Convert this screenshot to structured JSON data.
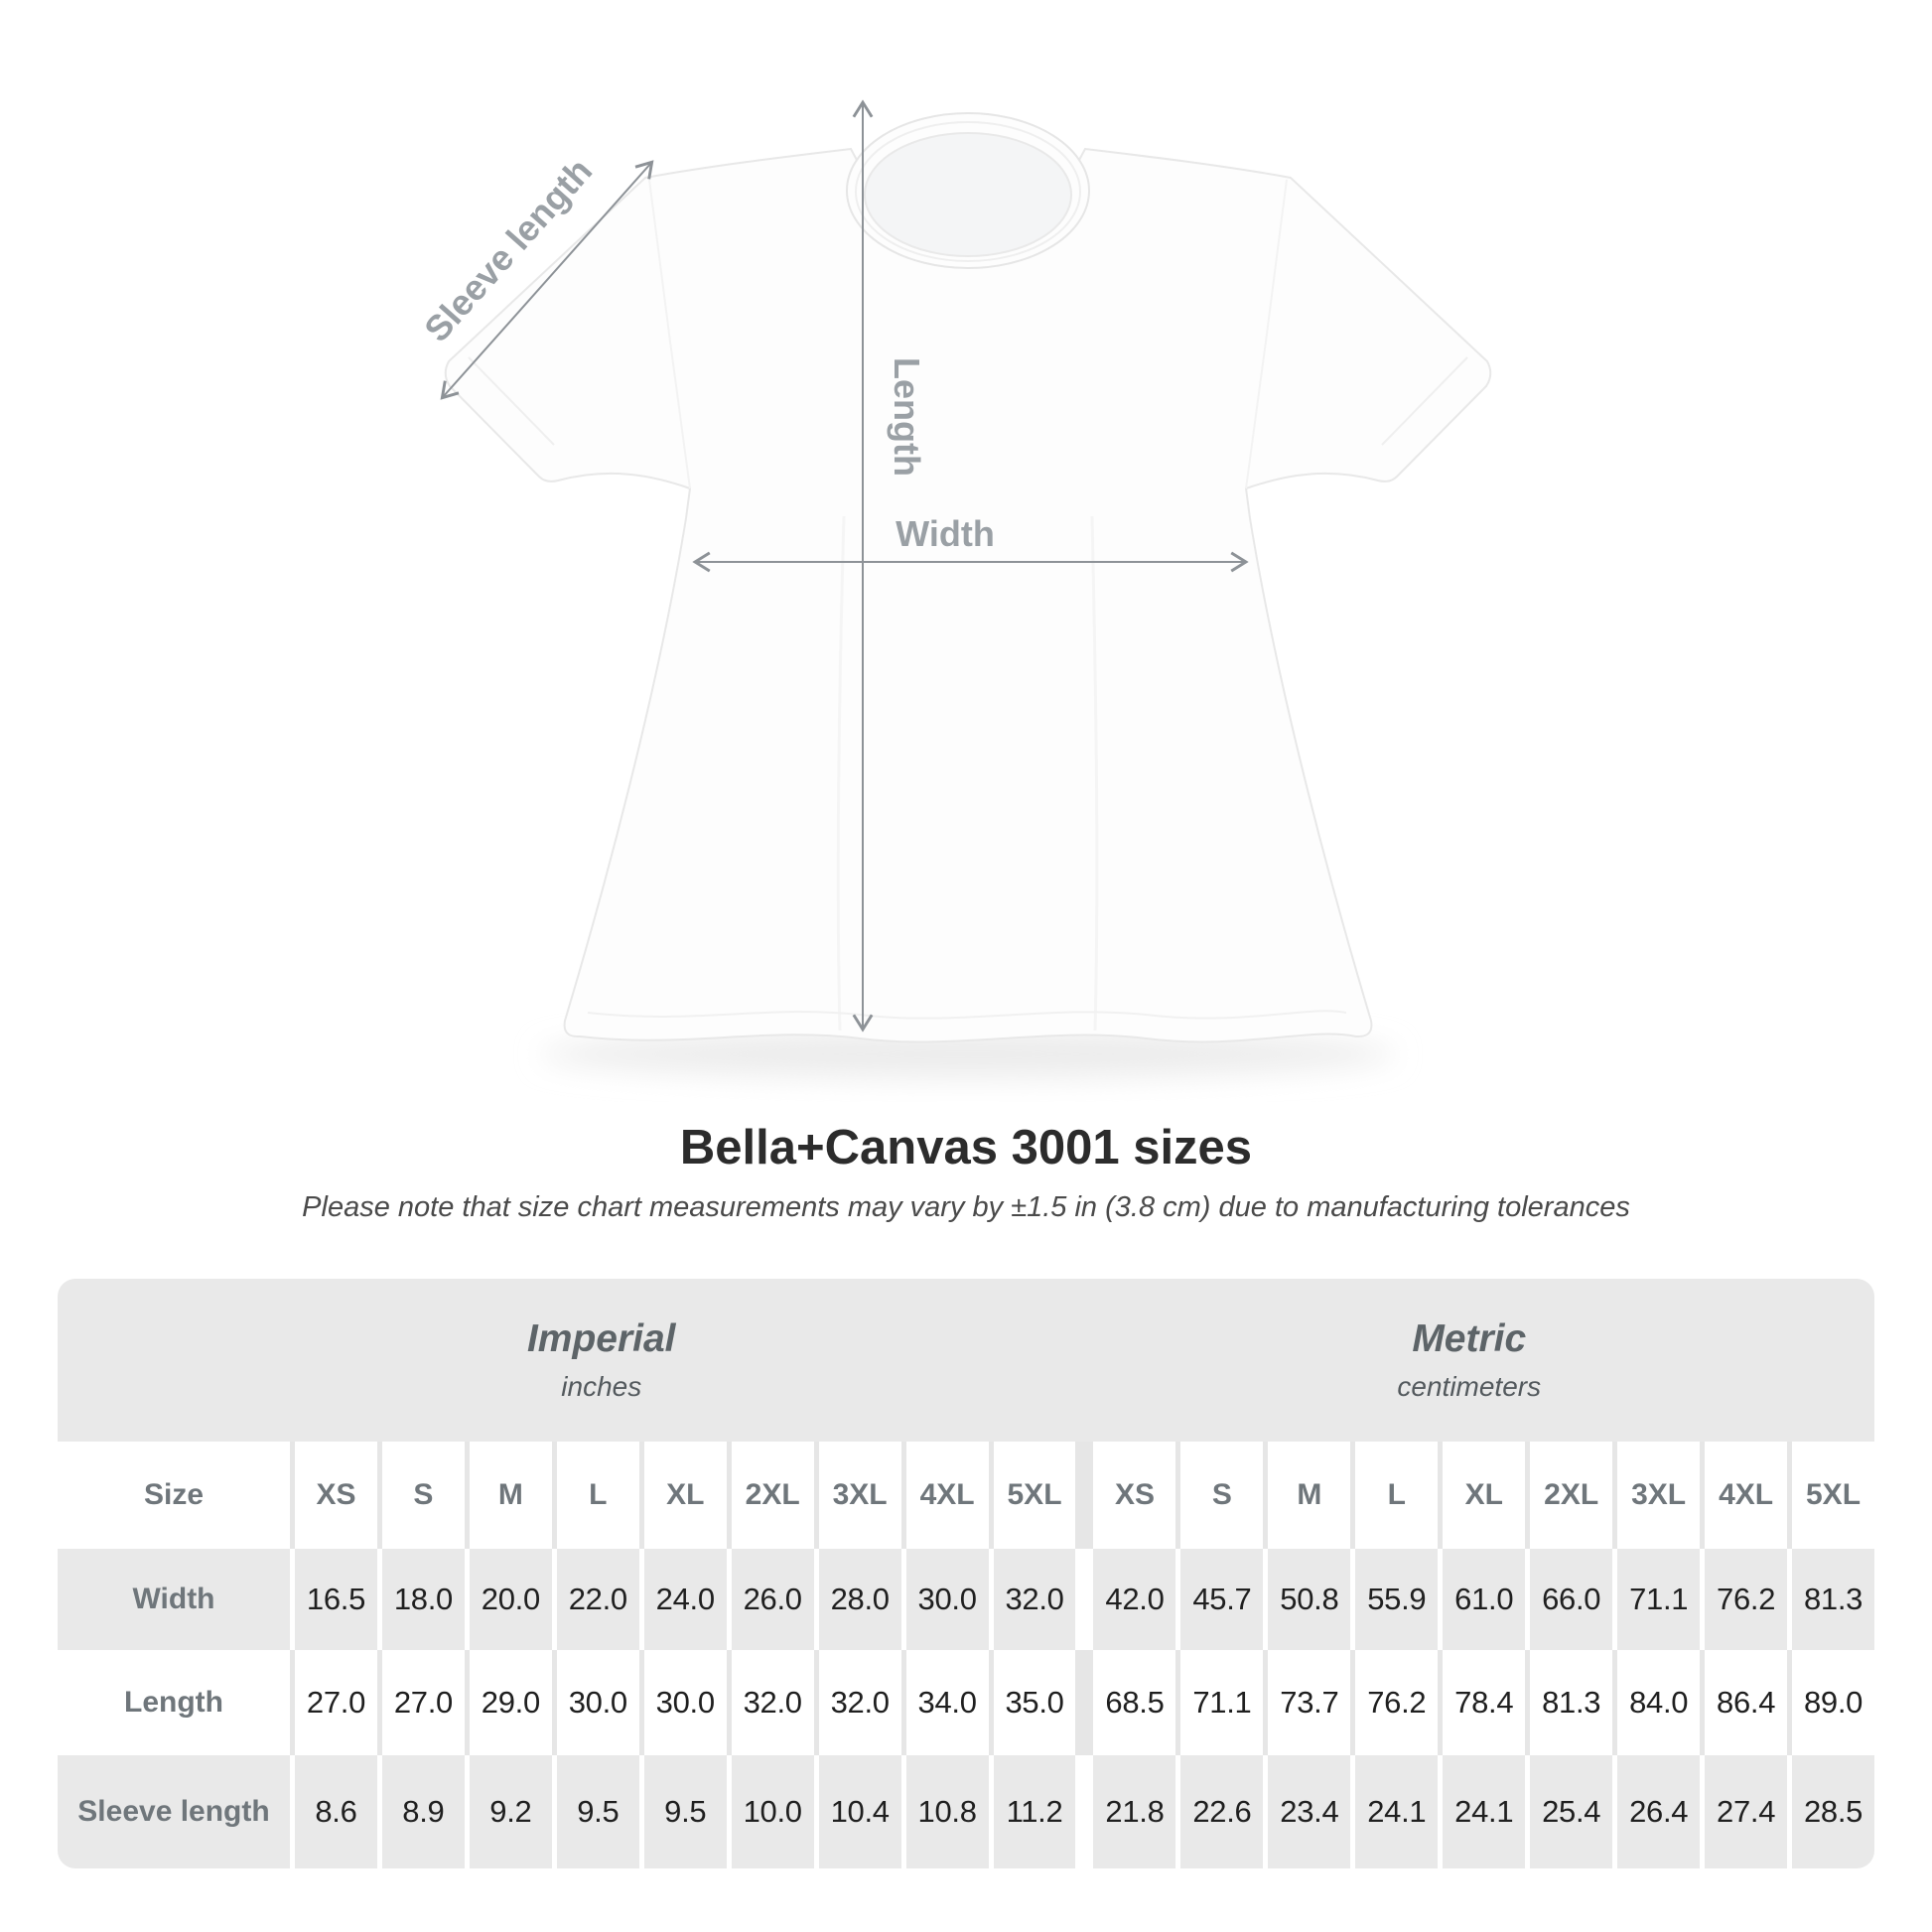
{
  "diagram": {
    "labels": {
      "sleeve_length": "Sleeve length",
      "length": "Length",
      "width": "Width"
    },
    "arrow_color": "#8d9297",
    "label_color": "#9aa0a5"
  },
  "header": {
    "title": "Bella+Canvas 3001 sizes",
    "subtitle": "Please note that size chart measurements may vary by ±1.5 in (3.8 cm) due to manufacturing tolerances"
  },
  "table": {
    "size_label": "Size",
    "sizes": [
      "XS",
      "S",
      "M",
      "L",
      "XL",
      "2XL",
      "3XL",
      "4XL",
      "5XL"
    ],
    "groups": [
      {
        "name": "Imperial",
        "unit": "inches"
      },
      {
        "name": "Metric",
        "unit": "centimeters"
      }
    ],
    "rows": [
      {
        "label": "Width",
        "imperial": [
          "16.5",
          "18.0",
          "20.0",
          "22.0",
          "24.0",
          "26.0",
          "28.0",
          "30.0",
          "32.0"
        ],
        "metric": [
          "42.0",
          "45.7",
          "50.8",
          "55.9",
          "61.0",
          "66.0",
          "71.1",
          "76.2",
          "81.3"
        ]
      },
      {
        "label": "Length",
        "imperial": [
          "27.0",
          "27.0",
          "29.0",
          "30.0",
          "30.0",
          "32.0",
          "32.0",
          "34.0",
          "35.0"
        ],
        "metric": [
          "68.5",
          "71.1",
          "73.7",
          "76.2",
          "78.4",
          "81.3",
          "84.0",
          "86.4",
          "89.0"
        ]
      },
      {
        "label": "Sleeve length",
        "imperial": [
          "8.6",
          "8.9",
          "9.2",
          "9.5",
          "9.5",
          "10.0",
          "10.4",
          "10.8",
          "11.2"
        ],
        "metric": [
          "21.8",
          "22.6",
          "23.4",
          "24.1",
          "24.1",
          "25.4",
          "26.4",
          "27.4",
          "28.5"
        ]
      }
    ],
    "colors": {
      "band_gray": "#e9e9e9",
      "cell_gray": "#e9e9e9",
      "gap_gray": "#e6e6e6",
      "header_text": "#6f767b",
      "value_text": "#1f1f1f"
    }
  },
  "chart_data": {
    "type": "table",
    "title": "Bella+Canvas 3001 sizes",
    "subtitle": "Please note that size chart measurements may vary by ±1.5 in (3.8 cm) due to manufacturing tolerances",
    "sizes": [
      "XS",
      "S",
      "M",
      "L",
      "XL",
      "2XL",
      "3XL",
      "4XL",
      "5XL"
    ],
    "units": {
      "imperial": "inches",
      "metric": "centimeters"
    },
    "measurements": [
      {
        "measurement": "Width",
        "imperial_in": [
          16.5,
          18.0,
          20.0,
          22.0,
          24.0,
          26.0,
          28.0,
          30.0,
          32.0
        ],
        "metric_cm": [
          42.0,
          45.7,
          50.8,
          55.9,
          61.0,
          66.0,
          71.1,
          76.2,
          81.3
        ]
      },
      {
        "measurement": "Length",
        "imperial_in": [
          27.0,
          27.0,
          29.0,
          30.0,
          30.0,
          32.0,
          32.0,
          34.0,
          35.0
        ],
        "metric_cm": [
          68.5,
          71.1,
          73.7,
          76.2,
          78.4,
          81.3,
          84.0,
          86.4,
          89.0
        ]
      },
      {
        "measurement": "Sleeve length",
        "imperial_in": [
          8.6,
          8.9,
          9.2,
          9.5,
          9.5,
          10.0,
          10.4,
          10.8,
          11.2
        ],
        "metric_cm": [
          21.8,
          22.6,
          23.4,
          24.1,
          24.1,
          25.4,
          26.4,
          27.4,
          28.5
        ]
      }
    ]
  }
}
